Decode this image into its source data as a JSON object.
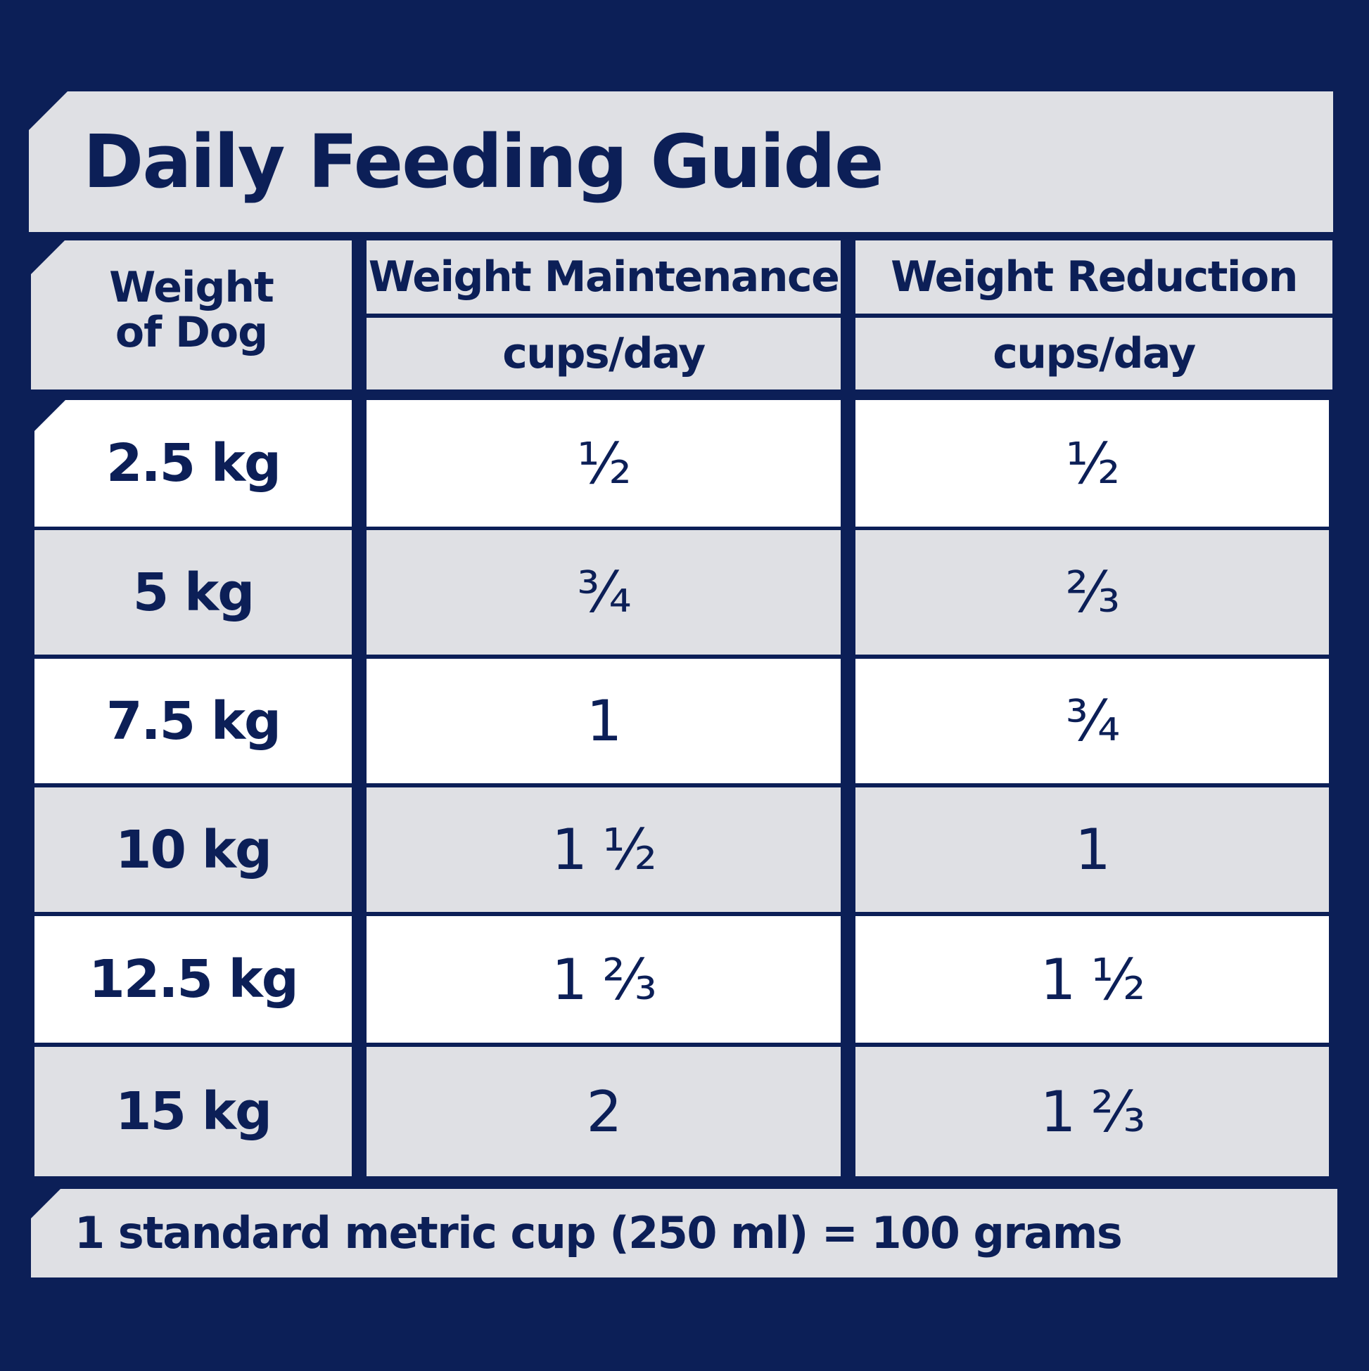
{
  "title": "Daily Feeding Guide",
  "header": {
    "weight_col": "Weight of Dog",
    "maintenance": "Weight Maintenance",
    "reduction": "Weight Reduction",
    "unit_maintenance": "cups/day",
    "unit_reduction": "cups/day"
  },
  "rows": [
    {
      "weight": "2.5 kg",
      "maintenance": "½",
      "reduction": "½"
    },
    {
      "weight": "5 kg",
      "maintenance": "¾",
      "reduction": "⅔"
    },
    {
      "weight": "7.5 kg",
      "maintenance": "1",
      "reduction": "¾"
    },
    {
      "weight": "10 kg",
      "maintenance": "1 ½",
      "reduction": "1"
    },
    {
      "weight": "12.5 kg",
      "maintenance": "1 ⅔",
      "reduction": "1 ½"
    },
    {
      "weight": "15 kg",
      "maintenance": "2",
      "reduction": "1 ⅔"
    }
  ],
  "footer": "1 standard metric cup (250 ml) = 100 grams",
  "colors": {
    "background": "#0c1f57",
    "grey_panel": "#dfe0e4",
    "white_panel": "#ffffff",
    "text": "#0c1f57"
  }
}
